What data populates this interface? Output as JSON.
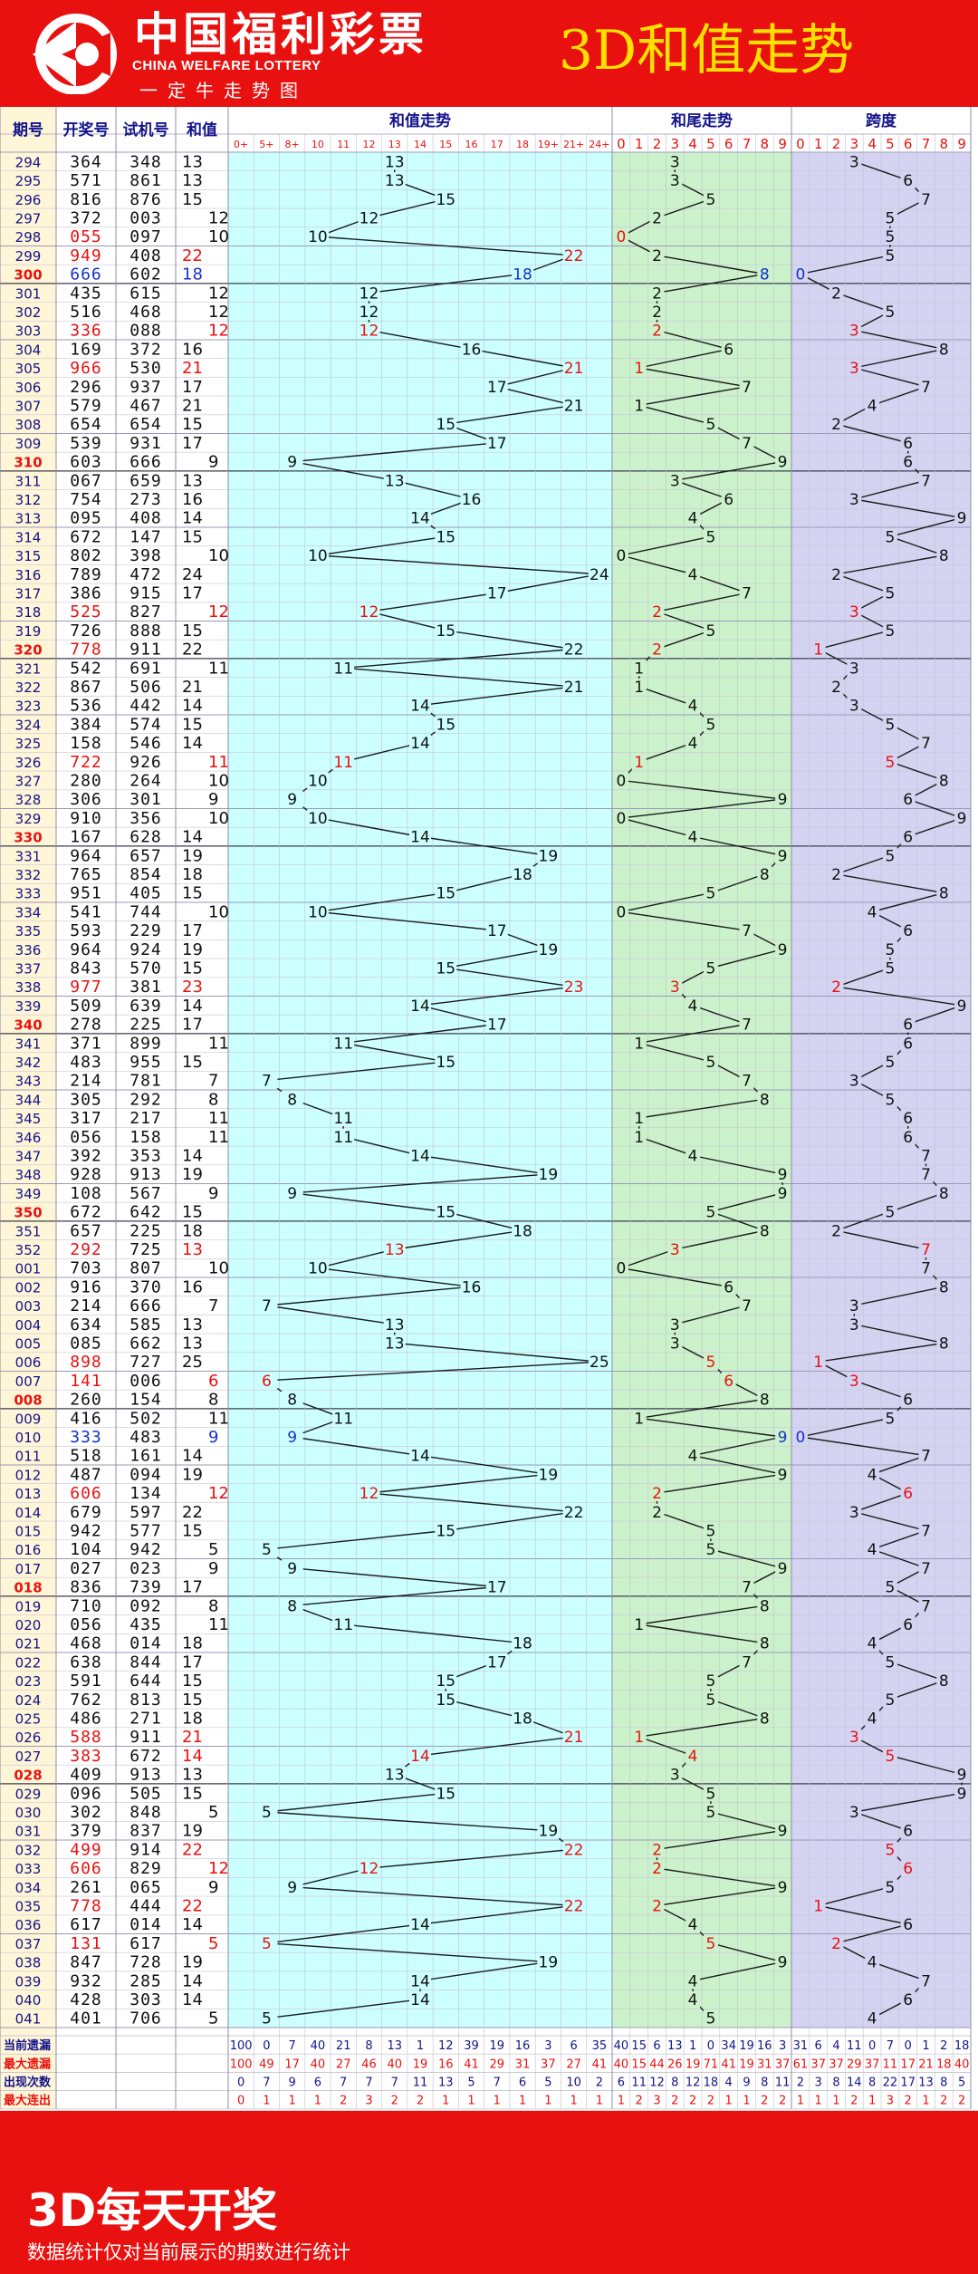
{
  "header": {
    "logo_cn": "中国福利彩票",
    "logo_en": "CHINA WELFARE LOTTERY",
    "logo_slogan": "一定牛走势图",
    "title": "3D和值走势"
  },
  "footer": {
    "title": "3D每天开奖",
    "note": "数据统计仅对当前展示的期数进行统计"
  },
  "colors": {
    "bg_red": "#e8110f",
    "title_yellow": "#ffe000",
    "zone_sum": "#ccffff",
    "zone_tail": "#ccf2cc",
    "zone_span": "#d4d4f2",
    "left_cream": "#fff6d8",
    "dark_blue": "#13138a",
    "hit_red": "#e8110f",
    "hit_blue": "#1730c8"
  },
  "chart_data": {
    "type": "table",
    "column_headers": [
      "期号",
      "开奖号",
      "试机号",
      "和值"
    ],
    "sections": {
      "sum": "和值走势",
      "tail": "和尾走势",
      "span": "跨度"
    },
    "sum_ticks": [
      "0+",
      "5+",
      "8+",
      "10",
      "11",
      "12",
      "13",
      "14",
      "15",
      "16",
      "17",
      "18",
      "19+",
      "21+",
      "24+"
    ],
    "digit_ticks": [
      "0",
      "1",
      "2",
      "3",
      "4",
      "5",
      "6",
      "7",
      "8",
      "9"
    ],
    "rows": [
      {
        "issue": "294",
        "draw": "364",
        "test": "348",
        "sum": 13,
        "c": "k",
        "mk": ""
      },
      {
        "issue": "295",
        "draw": "571",
        "test": "861",
        "sum": 13,
        "c": "k",
        "mk": ""
      },
      {
        "issue": "296",
        "draw": "816",
        "test": "876",
        "sum": 15,
        "c": "k",
        "mk": ""
      },
      {
        "issue": "297",
        "draw": "372",
        "test": "003",
        "sum": 12,
        "c": "k",
        "mk": ""
      },
      {
        "issue": "298",
        "draw": "055",
        "test": "097",
        "sum": 10,
        "c": "r",
        "mk": "t"
      },
      {
        "issue": "299",
        "draw": "949",
        "test": "408",
        "sum": 22,
        "c": "r",
        "mk": "s"
      },
      {
        "issue": "300",
        "draw": "666",
        "test": "602",
        "sum": 18,
        "c": "b",
        "mk": "stp"
      },
      {
        "issue": "301",
        "draw": "435",
        "test": "615",
        "sum": 12,
        "c": "k",
        "mk": ""
      },
      {
        "issue": "302",
        "draw": "516",
        "test": "468",
        "sum": 12,
        "c": "k",
        "mk": ""
      },
      {
        "issue": "303",
        "draw": "336",
        "test": "088",
        "sum": 12,
        "c": "r",
        "mk": "stp"
      },
      {
        "issue": "304",
        "draw": "169",
        "test": "372",
        "sum": 16,
        "c": "k",
        "mk": ""
      },
      {
        "issue": "305",
        "draw": "966",
        "test": "530",
        "sum": 21,
        "c": "r",
        "mk": "stp"
      },
      {
        "issue": "306",
        "draw": "296",
        "test": "937",
        "sum": 17,
        "c": "k",
        "mk": ""
      },
      {
        "issue": "307",
        "draw": "579",
        "test": "467",
        "sum": 21,
        "c": "k",
        "mk": ""
      },
      {
        "issue": "308",
        "draw": "654",
        "test": "654",
        "sum": 15,
        "c": "k",
        "mk": ""
      },
      {
        "issue": "309",
        "draw": "539",
        "test": "931",
        "sum": 17,
        "c": "k",
        "mk": ""
      },
      {
        "issue": "310",
        "draw": "603",
        "test": "666",
        "sum": 9,
        "c": "k",
        "mk": ""
      },
      {
        "issue": "311",
        "draw": "067",
        "test": "659",
        "sum": 13,
        "c": "k",
        "mk": ""
      },
      {
        "issue": "312",
        "draw": "754",
        "test": "273",
        "sum": 16,
        "c": "k",
        "mk": ""
      },
      {
        "issue": "313",
        "draw": "095",
        "test": "408",
        "sum": 14,
        "c": "k",
        "mk": ""
      },
      {
        "issue": "314",
        "draw": "672",
        "test": "147",
        "sum": 15,
        "c": "k",
        "mk": ""
      },
      {
        "issue": "315",
        "draw": "802",
        "test": "398",
        "sum": 10,
        "c": "k",
        "mk": ""
      },
      {
        "issue": "316",
        "draw": "789",
        "test": "472",
        "sum": 24,
        "c": "k",
        "mk": ""
      },
      {
        "issue": "317",
        "draw": "386",
        "test": "915",
        "sum": 17,
        "c": "k",
        "mk": ""
      },
      {
        "issue": "318",
        "draw": "525",
        "test": "827",
        "sum": 12,
        "c": "r",
        "mk": "stp"
      },
      {
        "issue": "319",
        "draw": "726",
        "test": "888",
        "sum": 15,
        "c": "k",
        "mk": ""
      },
      {
        "issue": "320",
        "draw": "778",
        "test": "911",
        "sum": 22,
        "c": "r",
        "mk": "tp"
      },
      {
        "issue": "321",
        "draw": "542",
        "test": "691",
        "sum": 11,
        "c": "k",
        "mk": ""
      },
      {
        "issue": "322",
        "draw": "867",
        "test": "506",
        "sum": 21,
        "c": "k",
        "mk": ""
      },
      {
        "issue": "323",
        "draw": "536",
        "test": "442",
        "sum": 14,
        "c": "k",
        "mk": ""
      },
      {
        "issue": "324",
        "draw": "384",
        "test": "574",
        "sum": 15,
        "c": "k",
        "mk": ""
      },
      {
        "issue": "325",
        "draw": "158",
        "test": "546",
        "sum": 14,
        "c": "k",
        "mk": ""
      },
      {
        "issue": "326",
        "draw": "722",
        "test": "926",
        "sum": 11,
        "c": "r",
        "mk": "stp"
      },
      {
        "issue": "327",
        "draw": "280",
        "test": "264",
        "sum": 10,
        "c": "k",
        "mk": ""
      },
      {
        "issue": "328",
        "draw": "306",
        "test": "301",
        "sum": 9,
        "c": "k",
        "mk": ""
      },
      {
        "issue": "329",
        "draw": "910",
        "test": "356",
        "sum": 10,
        "c": "k",
        "mk": ""
      },
      {
        "issue": "330",
        "draw": "167",
        "test": "628",
        "sum": 14,
        "c": "k",
        "mk": ""
      },
      {
        "issue": "331",
        "draw": "964",
        "test": "657",
        "sum": 19,
        "c": "k",
        "mk": ""
      },
      {
        "issue": "332",
        "draw": "765",
        "test": "854",
        "sum": 18,
        "c": "k",
        "mk": ""
      },
      {
        "issue": "333",
        "draw": "951",
        "test": "405",
        "sum": 15,
        "c": "k",
        "mk": ""
      },
      {
        "issue": "334",
        "draw": "541",
        "test": "744",
        "sum": 10,
        "c": "k",
        "mk": ""
      },
      {
        "issue": "335",
        "draw": "593",
        "test": "229",
        "sum": 17,
        "c": "k",
        "mk": ""
      },
      {
        "issue": "336",
        "draw": "964",
        "test": "924",
        "sum": 19,
        "c": "k",
        "mk": ""
      },
      {
        "issue": "337",
        "draw": "843",
        "test": "570",
        "sum": 15,
        "c": "k",
        "mk": ""
      },
      {
        "issue": "338",
        "draw": "977",
        "test": "381",
        "sum": 23,
        "c": "r",
        "mk": "stp"
      },
      {
        "issue": "339",
        "draw": "509",
        "test": "639",
        "sum": 14,
        "c": "k",
        "mk": ""
      },
      {
        "issue": "340",
        "draw": "278",
        "test": "225",
        "sum": 17,
        "c": "k",
        "mk": ""
      },
      {
        "issue": "341",
        "draw": "371",
        "test": "899",
        "sum": 11,
        "c": "k",
        "mk": ""
      },
      {
        "issue": "342",
        "draw": "483",
        "test": "955",
        "sum": 15,
        "c": "k",
        "mk": ""
      },
      {
        "issue": "343",
        "draw": "214",
        "test": "781",
        "sum": 7,
        "c": "k",
        "mk": ""
      },
      {
        "issue": "344",
        "draw": "305",
        "test": "292",
        "sum": 8,
        "c": "k",
        "mk": ""
      },
      {
        "issue": "345",
        "draw": "317",
        "test": "217",
        "sum": 11,
        "c": "k",
        "mk": ""
      },
      {
        "issue": "346",
        "draw": "056",
        "test": "158",
        "sum": 11,
        "c": "k",
        "mk": ""
      },
      {
        "issue": "347",
        "draw": "392",
        "test": "353",
        "sum": 14,
        "c": "k",
        "mk": ""
      },
      {
        "issue": "348",
        "draw": "928",
        "test": "913",
        "sum": 19,
        "c": "k",
        "mk": ""
      },
      {
        "issue": "349",
        "draw": "108",
        "test": "567",
        "sum": 9,
        "c": "k",
        "mk": ""
      },
      {
        "issue": "350",
        "draw": "672",
        "test": "642",
        "sum": 15,
        "c": "k",
        "mk": ""
      },
      {
        "issue": "351",
        "draw": "657",
        "test": "225",
        "sum": 18,
        "c": "k",
        "mk": ""
      },
      {
        "issue": "352",
        "draw": "292",
        "test": "725",
        "sum": 13,
        "c": "r",
        "mk": "stp"
      },
      {
        "issue": "001",
        "draw": "703",
        "test": "807",
        "sum": 10,
        "c": "k",
        "mk": ""
      },
      {
        "issue": "002",
        "draw": "916",
        "test": "370",
        "sum": 16,
        "c": "k",
        "mk": ""
      },
      {
        "issue": "003",
        "draw": "214",
        "test": "666",
        "sum": 7,
        "c": "k",
        "mk": ""
      },
      {
        "issue": "004",
        "draw": "634",
        "test": "585",
        "sum": 13,
        "c": "k",
        "mk": ""
      },
      {
        "issue": "005",
        "draw": "085",
        "test": "662",
        "sum": 13,
        "c": "k",
        "mk": ""
      },
      {
        "issue": "006",
        "draw": "898",
        "test": "727",
        "sum": 25,
        "c": "r",
        "mk": "tp"
      },
      {
        "issue": "007",
        "draw": "141",
        "test": "006",
        "sum": 6,
        "c": "r",
        "mk": "stp"
      },
      {
        "issue": "008",
        "draw": "260",
        "test": "154",
        "sum": 8,
        "c": "k",
        "mk": ""
      },
      {
        "issue": "009",
        "draw": "416",
        "test": "502",
        "sum": 11,
        "c": "k",
        "mk": ""
      },
      {
        "issue": "010",
        "draw": "333",
        "test": "483",
        "sum": 9,
        "c": "b",
        "mk": "stp"
      },
      {
        "issue": "011",
        "draw": "518",
        "test": "161",
        "sum": 14,
        "c": "k",
        "mk": ""
      },
      {
        "issue": "012",
        "draw": "487",
        "test": "094",
        "sum": 19,
        "c": "k",
        "mk": ""
      },
      {
        "issue": "013",
        "draw": "606",
        "test": "134",
        "sum": 12,
        "c": "r",
        "mk": "stp"
      },
      {
        "issue": "014",
        "draw": "679",
        "test": "597",
        "sum": 22,
        "c": "k",
        "mk": ""
      },
      {
        "issue": "015",
        "draw": "942",
        "test": "577",
        "sum": 15,
        "c": "k",
        "mk": ""
      },
      {
        "issue": "016",
        "draw": "104",
        "test": "942",
        "sum": 5,
        "c": "k",
        "mk": ""
      },
      {
        "issue": "017",
        "draw": "027",
        "test": "023",
        "sum": 9,
        "c": "k",
        "mk": ""
      },
      {
        "issue": "018",
        "draw": "836",
        "test": "739",
        "sum": 17,
        "c": "k",
        "mk": ""
      },
      {
        "issue": "019",
        "draw": "710",
        "test": "092",
        "sum": 8,
        "c": "k",
        "mk": ""
      },
      {
        "issue": "020",
        "draw": "056",
        "test": "435",
        "sum": 11,
        "c": "k",
        "mk": ""
      },
      {
        "issue": "021",
        "draw": "468",
        "test": "014",
        "sum": 18,
        "c": "k",
        "mk": ""
      },
      {
        "issue": "022",
        "draw": "638",
        "test": "844",
        "sum": 17,
        "c": "k",
        "mk": ""
      },
      {
        "issue": "023",
        "draw": "591",
        "test": "644",
        "sum": 15,
        "c": "k",
        "mk": ""
      },
      {
        "issue": "024",
        "draw": "762",
        "test": "813",
        "sum": 15,
        "c": "k",
        "mk": ""
      },
      {
        "issue": "025",
        "draw": "486",
        "test": "271",
        "sum": 18,
        "c": "k",
        "mk": ""
      },
      {
        "issue": "026",
        "draw": "588",
        "test": "911",
        "sum": 21,
        "c": "r",
        "mk": "stp"
      },
      {
        "issue": "027",
        "draw": "383",
        "test": "672",
        "sum": 14,
        "c": "r",
        "mk": "stp"
      },
      {
        "issue": "028",
        "draw": "409",
        "test": "913",
        "sum": 13,
        "c": "k",
        "mk": ""
      },
      {
        "issue": "029",
        "draw": "096",
        "test": "505",
        "sum": 15,
        "c": "k",
        "mk": ""
      },
      {
        "issue": "030",
        "draw": "302",
        "test": "848",
        "sum": 5,
        "c": "k",
        "mk": ""
      },
      {
        "issue": "031",
        "draw": "379",
        "test": "837",
        "sum": 19,
        "c": "k",
        "mk": ""
      },
      {
        "issue": "032",
        "draw": "499",
        "test": "914",
        "sum": 22,
        "c": "r",
        "mk": "stp"
      },
      {
        "issue": "033",
        "draw": "606",
        "test": "829",
        "sum": 12,
        "c": "r",
        "mk": "stp"
      },
      {
        "issue": "034",
        "draw": "261",
        "test": "065",
        "sum": 9,
        "c": "k",
        "mk": ""
      },
      {
        "issue": "035",
        "draw": "778",
        "test": "444",
        "sum": 22,
        "c": "r",
        "mk": "stp"
      },
      {
        "issue": "036",
        "draw": "617",
        "test": "014",
        "sum": 14,
        "c": "k",
        "mk": ""
      },
      {
        "issue": "037",
        "draw": "131",
        "test": "617",
        "sum": 5,
        "c": "r",
        "mk": "stp"
      },
      {
        "issue": "038",
        "draw": "847",
        "test": "728",
        "sum": 19,
        "c": "k",
        "mk": ""
      },
      {
        "issue": "039",
        "draw": "932",
        "test": "285",
        "sum": 14,
        "c": "k",
        "mk": ""
      },
      {
        "issue": "040",
        "draw": "428",
        "test": "303",
        "sum": 14,
        "c": "k",
        "mk": ""
      },
      {
        "issue": "041",
        "draw": "401",
        "test": "706",
        "sum": 5,
        "c": "k",
        "mk": ""
      }
    ],
    "stat_labels": [
      "当前遗漏",
      "最大遗漏",
      "出现次数",
      "最大连出"
    ],
    "stats_sum": [
      [
        "100",
        "0",
        "7",
        "40",
        "21",
        "8",
        "13",
        "1",
        "12",
        "39",
        "19",
        "16",
        "3",
        "6",
        "35"
      ],
      [
        "100",
        "49",
        "17",
        "40",
        "27",
        "46",
        "40",
        "19",
        "16",
        "41",
        "29",
        "31",
        "37",
        "27",
        "41"
      ],
      [
        "0",
        "7",
        "9",
        "6",
        "7",
        "7",
        "7",
        "11",
        "13",
        "5",
        "7",
        "6",
        "5",
        "10",
        "2"
      ],
      [
        "0",
        "1",
        "1",
        "1",
        "2",
        "3",
        "2",
        "2",
        "1",
        "1",
        "1",
        "1",
        "1",
        "1",
        "1"
      ]
    ],
    "stats_tail": [
      [
        "40",
        "15",
        "6",
        "13",
        "1",
        "0",
        "34",
        "19",
        "16",
        "3"
      ],
      [
        "40",
        "15",
        "44",
        "26",
        "19",
        "71",
        "41",
        "19",
        "31",
        "37"
      ],
      [
        "6",
        "11",
        "12",
        "8",
        "12",
        "18",
        "4",
        "9",
        "8",
        "11"
      ],
      [
        "1",
        "2",
        "3",
        "2",
        "2",
        "2",
        "1",
        "1",
        "2",
        "2"
      ]
    ],
    "stats_span": [
      [
        "31",
        "6",
        "4",
        "11",
        "0",
        "7",
        "0",
        "1",
        "2",
        "18"
      ],
      [
        "61",
        "37",
        "37",
        "29",
        "37",
        "11",
        "17",
        "21",
        "18",
        "40"
      ],
      [
        "2",
        "3",
        "8",
        "14",
        "8",
        "22",
        "17",
        "13",
        "8",
        "5"
      ],
      [
        "1",
        "1",
        "1",
        "2",
        "1",
        "3",
        "2",
        "1",
        "2",
        "2"
      ]
    ]
  }
}
